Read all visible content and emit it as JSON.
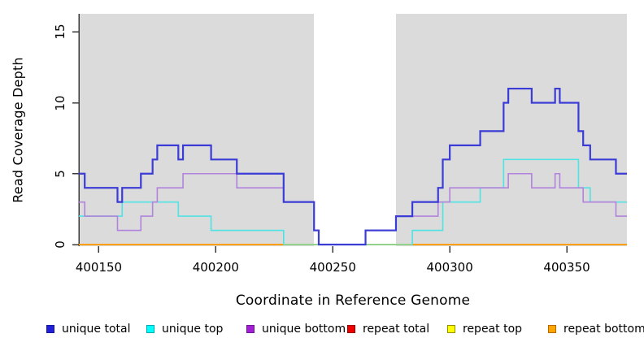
{
  "chart_data": {
    "type": "line",
    "subtype": "step",
    "title": "",
    "xlabel": "Coordinate in Reference Genome",
    "ylabel": "Read Coverage Depth",
    "x_ticks": [
      400150,
      400200,
      400250,
      400300,
      400350
    ],
    "y_ticks": [
      0,
      5,
      10,
      15
    ],
    "x_range": [
      400141.5,
      400375.7
    ],
    "ylim": [
      0,
      16.3
    ],
    "grid": false,
    "legend_position": "bottom",
    "plot_background_color": "#dbdbdb",
    "uncovered_region": {
      "description": "white band with no coverage data",
      "x_start": 400242,
      "x_end": 400277,
      "color": "#ffffff"
    },
    "series": [
      {
        "name": "unique total",
        "color": "#3b3bd6",
        "width": 2.2,
        "steps": [
          [
            400141.5,
            5
          ],
          [
            400144,
            4
          ],
          [
            400158,
            3
          ],
          [
            400160,
            4
          ],
          [
            400168,
            5
          ],
          [
            400173,
            6
          ],
          [
            400175,
            7
          ],
          [
            400184,
            6
          ],
          [
            400186,
            7
          ],
          [
            400198,
            6
          ],
          [
            400209,
            5
          ],
          [
            400229,
            3
          ],
          [
            400242,
            1
          ],
          [
            400244,
            0
          ],
          [
            400264,
            1
          ],
          [
            400277,
            2
          ],
          [
            400284,
            3
          ],
          [
            400295,
            4
          ],
          [
            400297,
            6
          ],
          [
            400300,
            7
          ],
          [
            400313,
            8
          ],
          [
            400323,
            10
          ],
          [
            400325,
            11
          ],
          [
            400335,
            10
          ],
          [
            400345,
            11
          ],
          [
            400347,
            10
          ],
          [
            400355,
            8
          ],
          [
            400357,
            7
          ],
          [
            400360,
            6
          ],
          [
            400371,
            5
          ]
        ]
      },
      {
        "name": "unique top",
        "color": "#4fe3e3",
        "width": 1.6,
        "steps": [
          [
            400141.5,
            2
          ],
          [
            400160,
            3
          ],
          [
            400184,
            2
          ],
          [
            400198,
            1
          ],
          [
            400229,
            0
          ],
          [
            400284,
            1
          ],
          [
            400297,
            3
          ],
          [
            400313,
            4
          ],
          [
            400323,
            6
          ],
          [
            400355,
            4
          ],
          [
            400360,
            3
          ]
        ]
      },
      {
        "name": "unique bottom",
        "color": "#b183dc",
        "width": 1.6,
        "steps": [
          [
            400141.5,
            3
          ],
          [
            400144,
            2
          ],
          [
            400158,
            1
          ],
          [
            400168,
            2
          ],
          [
            400173,
            3
          ],
          [
            400175,
            4
          ],
          [
            400186,
            5
          ],
          [
            400209,
            4
          ],
          [
            400229,
            3
          ],
          [
            400242,
            1
          ],
          [
            400244,
            0
          ],
          [
            400264,
            1
          ],
          [
            400277,
            2
          ],
          [
            400295,
            3
          ],
          [
            400300,
            4
          ],
          [
            400325,
            5
          ],
          [
            400335,
            4
          ],
          [
            400345,
            5
          ],
          [
            400347,
            4
          ],
          [
            400357,
            3
          ],
          [
            400371,
            2
          ]
        ]
      },
      {
        "name": "repeat total",
        "color": "#de0000",
        "width": 1.6,
        "steps": [
          [
            400141.5,
            0
          ]
        ]
      },
      {
        "name": "repeat top",
        "color": "#ffff00",
        "width": 1.6,
        "steps": [
          [
            400141.5,
            0
          ]
        ]
      },
      {
        "name": "repeat bottom",
        "color": "#ff9e00",
        "width": 2,
        "steps": [
          [
            400141.5,
            0
          ]
        ]
      }
    ],
    "overlap_blend_segment": {
      "description": "cyan line at depth 0 overlapping repeat lines renders pale green",
      "color": "#8fd48f",
      "x_start": 400229,
      "x_end": 400284,
      "y": 0,
      "width": 1.8
    }
  },
  "axes": {
    "y_title": "Read Coverage Depth",
    "x_title": "Coordinate in Reference Genome",
    "axis_color": "#3a3a3a"
  },
  "legend": {
    "items": [
      {
        "label": "unique total",
        "fill": "#2020d8",
        "border": "#1515a0"
      },
      {
        "label": "unique top",
        "fill": "#00ffff",
        "border": "#00aaaa"
      },
      {
        "label": "unique bottom",
        "fill": "#a21fd6",
        "border": "#6f1693"
      },
      {
        "label": "repeat total",
        "fill": "#ee0000",
        "border": "#990000"
      },
      {
        "label": "repeat top",
        "fill": "#ffff00",
        "border": "#909000"
      },
      {
        "label": "repeat bottom",
        "fill": "#ffa500",
        "border": "#b36b00"
      }
    ]
  }
}
